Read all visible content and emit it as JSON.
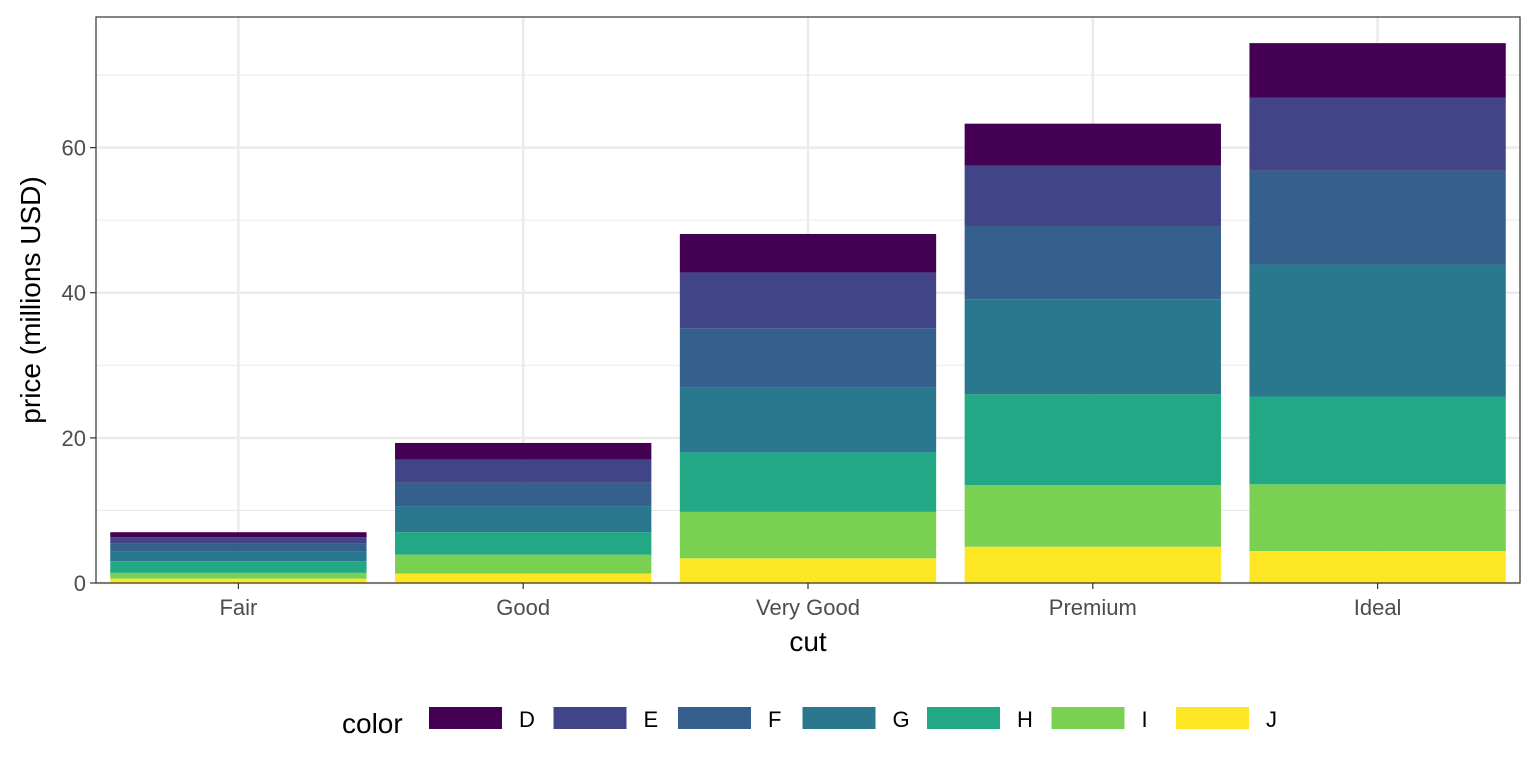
{
  "chart_data": {
    "type": "bar",
    "stacked": true,
    "title": "",
    "xlabel": "cut",
    "ylabel": "price (millions USD)",
    "categories": [
      "Fair",
      "Good",
      "Very Good",
      "Premium",
      "Ideal"
    ],
    "ylim": [
      0,
      78
    ],
    "yticks": [
      0,
      20,
      40,
      60
    ],
    "grid": true,
    "legend": {
      "title": "color",
      "position": "bottom"
    },
    "series": [
      {
        "name": "J",
        "color": "#FDE725",
        "values": [
          0.6,
          1.3,
          3.4,
          5.0,
          4.4
        ]
      },
      {
        "name": "I",
        "color": "#7AD151",
        "values": [
          0.8,
          2.6,
          6.4,
          8.5,
          9.2
        ]
      },
      {
        "name": "H",
        "color": "#22A884",
        "values": [
          1.6,
          3.1,
          8.2,
          12.5,
          12.1
        ]
      },
      {
        "name": "G",
        "color": "#2A788E",
        "values": [
          1.3,
          3.6,
          8.9,
          13.1,
          18.2
        ]
      },
      {
        "name": "F",
        "color": "#355F8D",
        "values": [
          1.2,
          3.2,
          8.2,
          10.1,
          12.9
        ]
      },
      {
        "name": "E",
        "color": "#414487",
        "values": [
          0.8,
          3.2,
          7.7,
          8.3,
          10.1
        ]
      },
      {
        "name": "D",
        "color": "#440154",
        "values": [
          0.7,
          2.3,
          5.3,
          5.8,
          7.5
        ]
      }
    ],
    "legend_order": [
      "D",
      "E",
      "F",
      "G",
      "H",
      "I",
      "J"
    ]
  }
}
